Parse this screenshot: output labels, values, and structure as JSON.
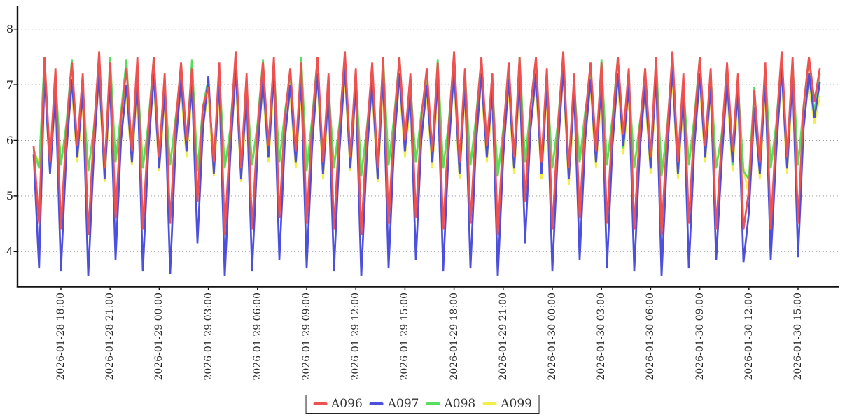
{
  "chart_data": {
    "type": "line",
    "title": "",
    "grid": "horizontal-dashed",
    "grid_color": "#999999",
    "axis_color": "#111111",
    "background": "#ffffff",
    "legend": {
      "position": "bottom-center",
      "bordered": true
    },
    "y_axis": {
      "label": "",
      "ticks": [
        4,
        5,
        6,
        7,
        8
      ],
      "range_min": 3.37,
      "range_max": 8.42
    },
    "x_axis": {
      "label": "",
      "start": "2026-01-28 16:20",
      "step_minutes": 20,
      "points_per_series": 145,
      "tick_indices": [
        5,
        14,
        23,
        32,
        41,
        50,
        59,
        68,
        77,
        86,
        95,
        104,
        113,
        122,
        131,
        140
      ],
      "tick_labels": [
        "2026-01-28 18:00",
        "2026-01-28 21:00",
        "2026-01-29 00:00",
        "2026-01-29 03:00",
        "2026-01-29 06:00",
        "2026-01-29 09:00",
        "2026-01-29 12:00",
        "2026-01-29 15:00",
        "2026-01-29 18:00",
        "2026-01-29 21:00",
        "2026-01-30 00:00",
        "2026-01-30 03:00",
        "2026-01-30 06:00",
        "2026-01-30 09:00",
        "2026-01-30 12:00",
        "2026-01-30 15:00"
      ]
    },
    "series": [
      {
        "name": "A096",
        "color": "#ef5050",
        "values": [
          5.9,
          4.5,
          7.5,
          5.6,
          7.3,
          4.4,
          6.2,
          7.4,
          5.9,
          7.2,
          4.3,
          6.1,
          7.6,
          5.5,
          7.4,
          4.6,
          6.4,
          7.3,
          5.8,
          7.5,
          4.4,
          6.2,
          7.5,
          5.7,
          7.2,
          4.5,
          6.3,
          7.4,
          6.0,
          7.3,
          4.9,
          6.6,
          6.95,
          5.6,
          7.4,
          4.3,
          6.1,
          7.6,
          5.5,
          7.2,
          4.4,
          6.2,
          7.4,
          5.9,
          7.5,
          4.6,
          6.4,
          7.3,
          5.8,
          7.4,
          4.5,
          6.3,
          7.5,
          5.6,
          7.2,
          4.4,
          6.2,
          7.6,
          5.7,
          7.3,
          4.3,
          6.1,
          7.4,
          5.5,
          7.5,
          4.5,
          6.3,
          7.5,
          6.0,
          7.2,
          4.6,
          6.4,
          7.3,
          5.8,
          7.4,
          4.4,
          6.2,
          7.6,
          5.6,
          7.3,
          4.5,
          6.3,
          7.5,
          5.9,
          7.2,
          4.3,
          6.1,
          7.4,
          5.7,
          7.5,
          4.9,
          6.6,
          7.5,
          5.6,
          7.3,
          4.4,
          6.2,
          7.6,
          5.5,
          7.2,
          4.6,
          6.4,
          7.4,
          5.8,
          7.4,
          4.5,
          6.3,
          7.5,
          6.1,
          7.3,
          4.4,
          6.2,
          7.3,
          5.7,
          7.5,
          4.3,
          6.1,
          7.6,
          5.6,
          7.2,
          4.5,
          6.3,
          7.5,
          5.9,
          7.3,
          4.4,
          6.0,
          7.4,
          5.8,
          7.2,
          4.4,
          5.1,
          6.9,
          5.6,
          7.4,
          4.4,
          6.2,
          7.6,
          5.7,
          7.5,
          4.5,
          6.6,
          7.5,
          6.7,
          7.3
        ]
      },
      {
        "name": "A097",
        "color": "#4d50dd",
        "values": [
          5.75,
          3.7,
          7.2,
          5.4,
          6.9,
          3.65,
          5.8,
          7.1,
          5.7,
          6.9,
          3.55,
          5.7,
          7.3,
          5.3,
          7.1,
          3.85,
          6.0,
          7.0,
          5.6,
          7.2,
          3.65,
          5.8,
          7.2,
          5.5,
          6.9,
          3.6,
          5.9,
          7.1,
          5.8,
          7.0,
          4.15,
          6.2,
          7.15,
          5.4,
          7.1,
          3.55,
          5.7,
          7.3,
          5.3,
          6.9,
          3.65,
          5.8,
          7.1,
          5.7,
          7.2,
          3.85,
          6.0,
          7.0,
          5.6,
          7.1,
          3.7,
          5.9,
          7.2,
          5.4,
          6.9,
          3.65,
          5.8,
          7.3,
          5.5,
          7.0,
          3.55,
          5.7,
          7.1,
          5.3,
          7.2,
          3.7,
          5.9,
          7.2,
          5.8,
          6.9,
          3.85,
          6.0,
          7.0,
          5.6,
          7.1,
          3.65,
          5.8,
          7.3,
          5.4,
          7.0,
          3.7,
          5.9,
          7.2,
          5.7,
          6.9,
          3.55,
          5.7,
          7.1,
          5.5,
          7.2,
          4.15,
          6.2,
          7.2,
          5.4,
          7.0,
          3.65,
          5.8,
          7.3,
          5.3,
          6.9,
          3.85,
          6.0,
          7.1,
          5.6,
          7.1,
          3.7,
          5.9,
          7.2,
          5.9,
          7.0,
          3.65,
          5.8,
          7.0,
          5.5,
          7.2,
          3.55,
          5.7,
          7.3,
          5.4,
          6.9,
          3.7,
          5.9,
          7.2,
          5.7,
          7.0,
          3.85,
          5.6,
          7.1,
          5.6,
          6.9,
          3.8,
          4.7,
          6.6,
          5.4,
          7.1,
          3.85,
          5.8,
          7.3,
          5.5,
          7.2,
          3.9,
          6.2,
          7.2,
          6.4,
          7.05
        ]
      },
      {
        "name": "A098",
        "color": "#58dd5e",
        "values": [
          5.85,
          5.5,
          7.5,
          5.45,
          7.1,
          5.55,
          6.3,
          7.45,
          5.75,
          7.0,
          5.45,
          6.2,
          7.3,
          5.35,
          7.5,
          5.6,
          6.5,
          7.45,
          5.65,
          7.2,
          5.5,
          6.3,
          7.5,
          5.55,
          7.0,
          5.55,
          6.4,
          7.2,
          5.85,
          7.45,
          5.45,
          6.6,
          7.1,
          5.45,
          7.2,
          5.5,
          6.2,
          7.5,
          5.35,
          7.0,
          5.55,
          6.3,
          7.45,
          5.7,
          7.3,
          5.6,
          6.5,
          7.2,
          5.6,
          7.5,
          5.45,
          6.4,
          7.5,
          5.4,
          7.0,
          5.5,
          6.3,
          7.45,
          5.55,
          7.2,
          5.35,
          6.2,
          7.2,
          5.35,
          7.5,
          5.55,
          6.4,
          7.5,
          5.8,
          7.0,
          5.6,
          6.5,
          7.1,
          5.6,
          7.45,
          5.5,
          6.3,
          7.5,
          5.4,
          7.2,
          5.55,
          6.4,
          7.45,
          5.7,
          7.0,
          5.35,
          6.2,
          7.2,
          5.5,
          7.5,
          5.6,
          6.6,
          7.45,
          5.4,
          7.1,
          5.5,
          6.3,
          7.5,
          5.35,
          7.0,
          5.6,
          6.5,
          7.2,
          5.6,
          7.45,
          5.55,
          6.4,
          7.5,
          5.85,
          7.1,
          5.5,
          6.3,
          7.0,
          5.5,
          7.5,
          5.35,
          6.2,
          7.45,
          5.4,
          7.0,
          5.55,
          6.4,
          7.5,
          5.7,
          7.2,
          5.5,
          6.1,
          7.2,
          5.55,
          7.0,
          5.45,
          5.3,
          6.95,
          5.4,
          7.3,
          5.5,
          6.3,
          7.5,
          5.5,
          7.4,
          5.55,
          6.6,
          7.5,
          6.5,
          7.2
        ]
      },
      {
        "name": "A099",
        "color": "#f4ee48",
        "values": [
          5.8,
          5.6,
          7.0,
          5.5,
          6.8,
          5.65,
          6.1,
          6.9,
          5.6,
          6.7,
          5.55,
          6.0,
          7.1,
          5.25,
          6.9,
          5.7,
          6.2,
          6.8,
          5.55,
          7.0,
          5.6,
          6.1,
          7.0,
          5.45,
          6.7,
          5.65,
          6.15,
          6.9,
          5.7,
          6.85,
          5.55,
          6.3,
          6.8,
          5.35,
          6.9,
          5.6,
          6.0,
          7.1,
          5.25,
          6.7,
          5.65,
          6.1,
          6.9,
          5.6,
          7.0,
          5.7,
          6.2,
          6.8,
          5.5,
          6.9,
          5.55,
          6.15,
          7.0,
          5.3,
          6.7,
          5.6,
          6.1,
          7.1,
          5.45,
          6.85,
          5.5,
          6.0,
          6.9,
          5.25,
          7.0,
          5.65,
          6.15,
          7.0,
          5.7,
          6.7,
          5.7,
          6.2,
          6.8,
          5.5,
          6.9,
          5.6,
          6.1,
          7.1,
          5.3,
          6.85,
          5.65,
          6.15,
          7.0,
          5.6,
          6.7,
          5.5,
          6.0,
          6.9,
          5.4,
          7.0,
          5.7,
          6.3,
          7.0,
          5.3,
          6.8,
          5.6,
          6.1,
          7.1,
          5.2,
          6.7,
          5.7,
          6.2,
          6.9,
          5.5,
          6.9,
          5.65,
          6.15,
          7.0,
          5.75,
          6.8,
          5.6,
          6.1,
          6.8,
          5.4,
          7.0,
          5.5,
          6.0,
          7.1,
          5.3,
          6.7,
          5.65,
          6.15,
          7.0,
          5.6,
          6.85,
          5.6,
          5.9,
          6.9,
          5.45,
          6.7,
          5.5,
          5.0,
          6.6,
          5.3,
          6.9,
          5.55,
          6.1,
          7.1,
          5.4,
          7.0,
          5.6,
          6.4,
          7.0,
          6.3,
          6.8
        ]
      }
    ]
  }
}
